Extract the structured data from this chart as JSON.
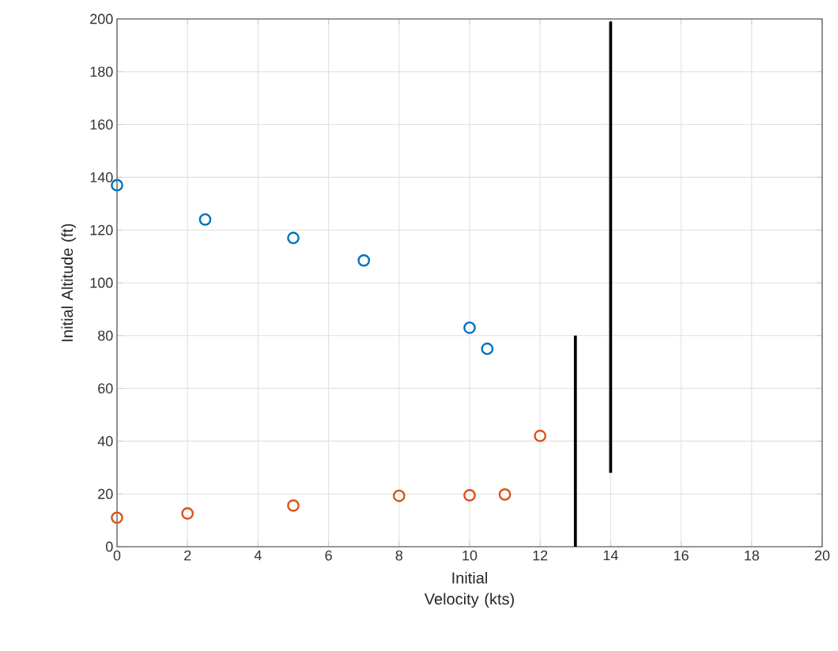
{
  "chart_data": {
    "type": "scatter",
    "xlabel": "Initial Velocity (kts)",
    "ylabel": "Initial Altitude (ft)",
    "xlim": [
      0,
      20
    ],
    "ylim": [
      0,
      200
    ],
    "xticks": [
      0,
      2,
      4,
      6,
      8,
      10,
      12,
      14,
      16,
      18,
      20
    ],
    "yticks": [
      0,
      20,
      40,
      60,
      80,
      100,
      120,
      140,
      160,
      180,
      200
    ],
    "grid": true,
    "series": [
      {
        "marker": "circle",
        "color": "#0072bd",
        "x": [
          0,
          2.5,
          5,
          7,
          10,
          10.5
        ],
        "values": [
          137,
          124,
          117,
          108.5,
          83,
          75
        ]
      },
      {
        "marker": "circle",
        "color": "#d95319",
        "x": [
          0,
          2,
          5,
          8,
          10,
          11,
          12
        ],
        "values": [
          11,
          12.6,
          15.6,
          19.3,
          19.5,
          19.8,
          42
        ]
      },
      {
        "type": "line",
        "marker": "none",
        "line_style": "solid",
        "color": "#000000",
        "x": [
          13,
          13
        ],
        "values": [
          0,
          80
        ]
      },
      {
        "type": "line",
        "marker": "none",
        "line_style": "solid",
        "color": "#000000",
        "x": [
          14,
          14
        ],
        "values": [
          28,
          199
        ]
      }
    ]
  }
}
